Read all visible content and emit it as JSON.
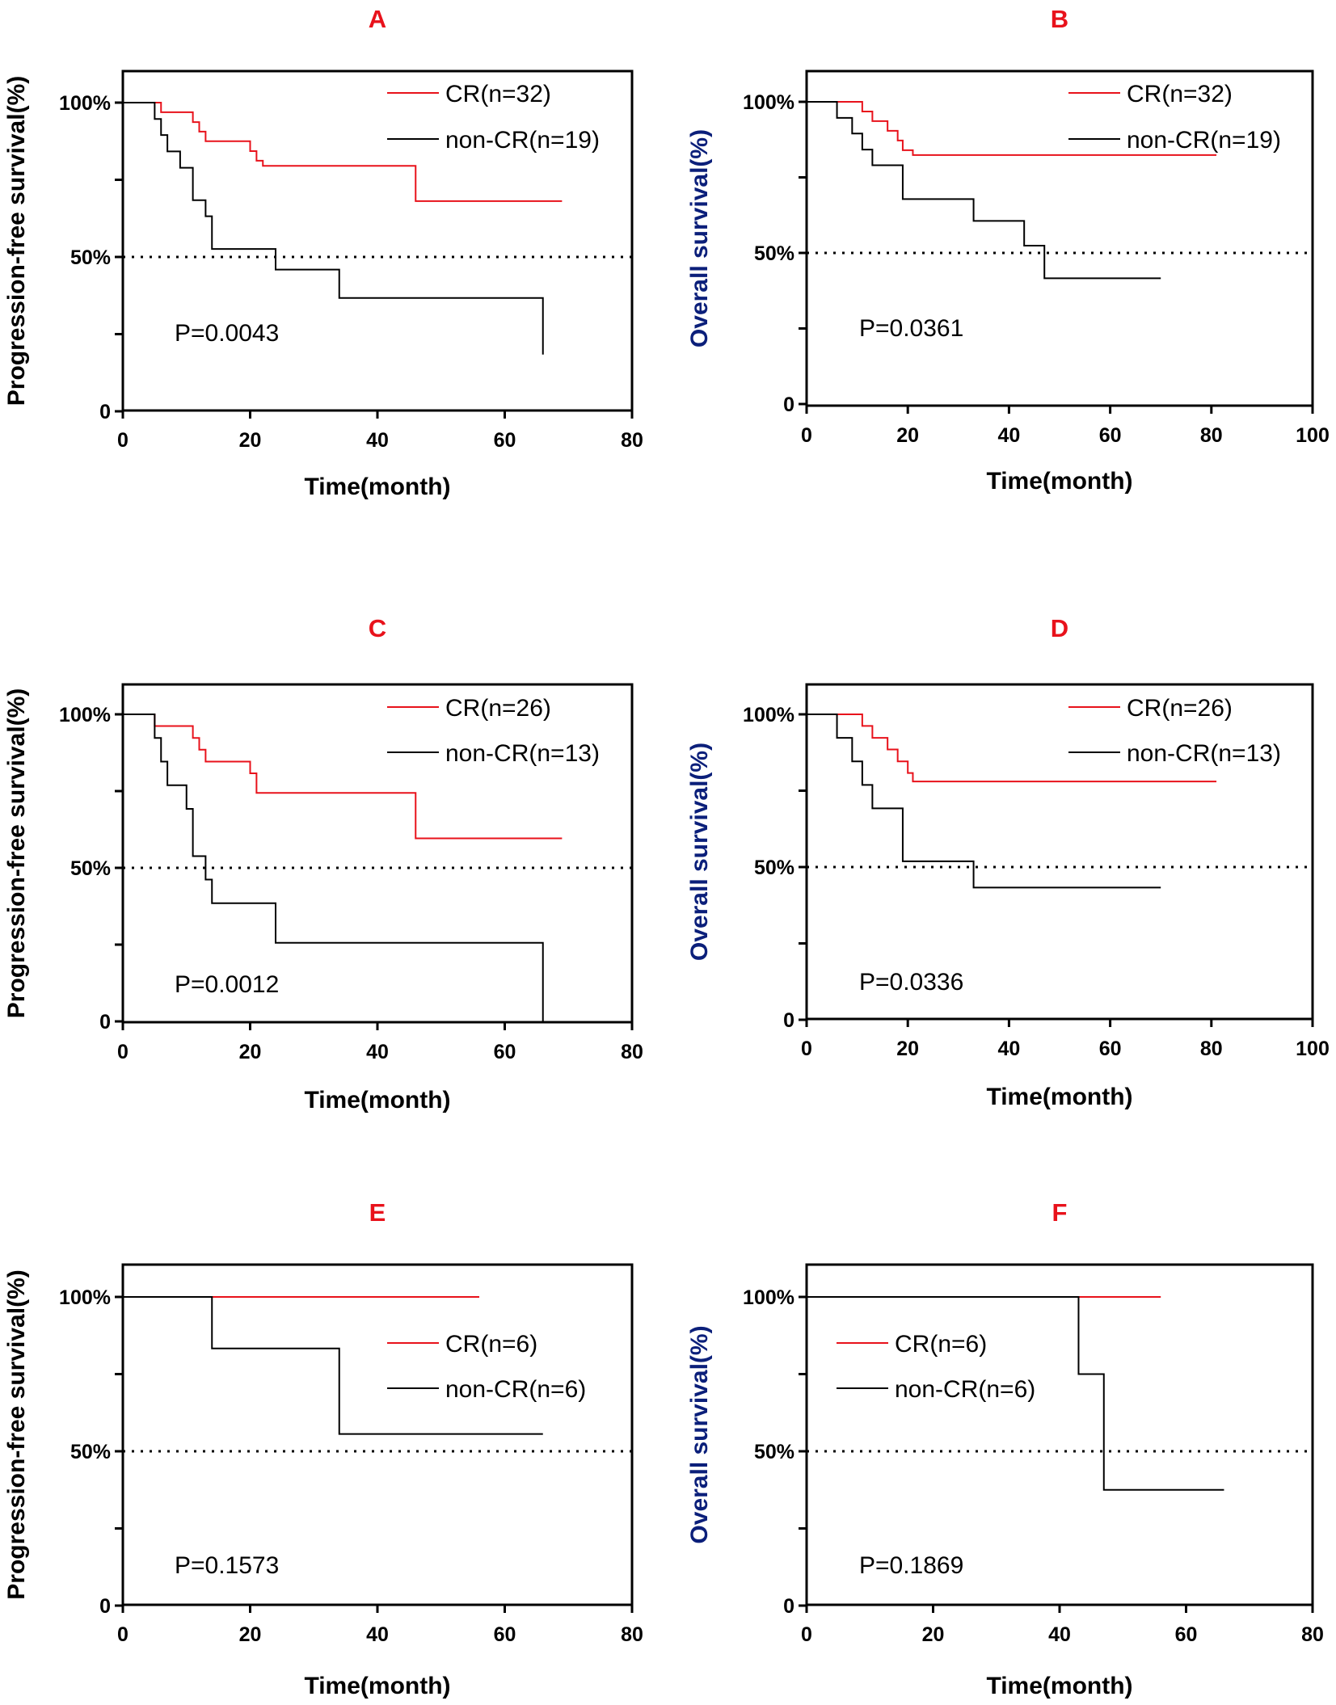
{
  "colors": {
    "cr": "#e8121b",
    "noncr": "#000000",
    "panel_letter": "#e8121b",
    "os_ylabel": "#0b1f7a",
    "axis": "#000000"
  },
  "chart_data": [
    {
      "type": "line",
      "panel": "A",
      "ylabel": "Progression-free survival(%)",
      "xlabel": "Time(month)",
      "xlim": [
        0,
        80
      ],
      "ylim": [
        0,
        110
      ],
      "xticks": [
        "0",
        "20",
        "40",
        "60",
        "80"
      ],
      "yticks": [
        {
          "value": 0,
          "label": "0"
        },
        {
          "value": 50,
          "label": "50%"
        },
        {
          "value": 100,
          "label": "100%"
        }
      ],
      "reference_line": 50,
      "p_value": "P=0.0043",
      "legend_position": "top-right",
      "series": [
        {
          "name": "CR(n=32)",
          "color": "#e8121b",
          "x": [
            0,
            6,
            11,
            12,
            13,
            20,
            21,
            22,
            46,
            69
          ],
          "y": [
            100,
            96.9,
            93.7,
            90.6,
            87.5,
            84.3,
            81.2,
            79.5,
            68.1,
            68.1
          ]
        },
        {
          "name": "non-CR(n=19)",
          "color": "#000000",
          "x": [
            0,
            5,
            6,
            7,
            9,
            11,
            13,
            14,
            24,
            34,
            66,
            66
          ],
          "y": [
            100,
            94.7,
            89.5,
            84.2,
            78.9,
            68.4,
            63.2,
            52.6,
            45.9,
            36.7,
            36.7,
            18.4
          ]
        }
      ]
    },
    {
      "type": "line",
      "panel": "B",
      "ylabel": "Overall survival(%)",
      "xlabel": "Time(month)",
      "xlim": [
        0,
        100
      ],
      "ylim": [
        0,
        110
      ],
      "xticks": [
        "0",
        "20",
        "40",
        "60",
        "80",
        "100"
      ],
      "yticks": [
        {
          "value": 0,
          "label": "0"
        },
        {
          "value": 50,
          "label": "50%"
        },
        {
          "value": 100,
          "label": "100%"
        }
      ],
      "reference_line": 50,
      "p_value": "P=0.0361",
      "legend_position": "top-right",
      "series": [
        {
          "name": "CR(n=32)",
          "color": "#e8121b",
          "x": [
            0,
            11,
            13,
            16,
            18,
            19,
            20,
            21,
            81
          ],
          "y": [
            100,
            96.8,
            93.6,
            90.4,
            87.2,
            84,
            84,
            82.4,
            82.4
          ]
        },
        {
          "name": "non-CR(n=19)",
          "color": "#000000",
          "x": [
            0,
            6,
            9,
            11,
            13,
            19,
            33,
            43,
            47,
            70
          ],
          "y": [
            100,
            94.7,
            89.5,
            84.2,
            79,
            67.8,
            60.6,
            52.4,
            41.6,
            41.6
          ]
        }
      ]
    },
    {
      "type": "line",
      "panel": "C",
      "ylabel": "Progression-free survival(%)",
      "xlabel": "Time(month)",
      "xlim": [
        0,
        80
      ],
      "ylim": [
        0,
        110
      ],
      "xticks": [
        "0",
        "20",
        "40",
        "60",
        "80"
      ],
      "yticks": [
        {
          "value": 0,
          "label": "0"
        },
        {
          "value": 50,
          "label": "50%"
        },
        {
          "value": 100,
          "label": "100%"
        }
      ],
      "reference_line": 50,
      "p_value": "P=0.0012",
      "legend_position": "top-right",
      "series": [
        {
          "name": "CR(n=26)",
          "color": "#e8121b",
          "x": [
            0,
            5,
            11,
            12,
            13,
            20,
            21,
            46,
            69
          ],
          "y": [
            100,
            96.2,
            92.3,
            88.5,
            84.6,
            80.8,
            74.4,
            59.6,
            59.6
          ]
        },
        {
          "name": "non-CR(n=13)",
          "color": "#000000",
          "x": [
            0,
            5,
            6,
            7,
            10,
            11,
            13,
            14,
            24,
            66,
            66
          ],
          "y": [
            100,
            92.3,
            84.6,
            76.9,
            69.2,
            53.8,
            46.2,
            38.5,
            25.6,
            25.6,
            0
          ]
        }
      ]
    },
    {
      "type": "line",
      "panel": "D",
      "ylabel": "Overall survival(%)",
      "xlabel": "Time(month)",
      "xlim": [
        0,
        100
      ],
      "ylim": [
        0,
        110
      ],
      "xticks": [
        "0",
        "20",
        "40",
        "60",
        "80",
        "100"
      ],
      "yticks": [
        {
          "value": 0,
          "label": "0"
        },
        {
          "value": 50,
          "label": "50%"
        },
        {
          "value": 100,
          "label": "100%"
        }
      ],
      "reference_line": 50,
      "p_value": "P=0.0336",
      "legend_position": "top-right",
      "series": [
        {
          "name": "CR(n=26)",
          "color": "#e8121b",
          "x": [
            0,
            11,
            13,
            16,
            18,
            20,
            21,
            81
          ],
          "y": [
            100,
            96.2,
            92.3,
            88.5,
            84.6,
            80.8,
            78,
            78
          ]
        },
        {
          "name": "non-CR(n=13)",
          "color": "#000000",
          "x": [
            0,
            6,
            9,
            11,
            13,
            19,
            33,
            70
          ],
          "y": [
            100,
            92.3,
            84.6,
            76.9,
            69.2,
            51.9,
            43.3,
            43.3
          ]
        }
      ]
    },
    {
      "type": "line",
      "panel": "E",
      "ylabel": "Progression-free survival(%)",
      "xlabel": "Time(month)",
      "xlim": [
        0,
        80
      ],
      "ylim": [
        0,
        110
      ],
      "xticks": [
        "0",
        "20",
        "40",
        "60",
        "80"
      ],
      "yticks": [
        {
          "value": 0,
          "label": "0"
        },
        {
          "value": 50,
          "label": "50%"
        },
        {
          "value": 100,
          "label": "100%"
        }
      ],
      "reference_line": 50,
      "p_value": "P=0.1573",
      "legend_position": "upper-right",
      "series": [
        {
          "name": "CR(n=6)",
          "color": "#e8121b",
          "x": [
            0,
            56
          ],
          "y": [
            100,
            100
          ]
        },
        {
          "name": "non-CR(n=6)",
          "color": "#000000",
          "x": [
            0,
            14,
            34,
            66
          ],
          "y": [
            100,
            83.3,
            55.6,
            55.6
          ]
        }
      ]
    },
    {
      "type": "line",
      "panel": "F",
      "ylabel": "Overall survival(%)",
      "xlabel": "Time(month)",
      "xlim": [
        0,
        80
      ],
      "ylim": [
        0,
        110
      ],
      "xticks": [
        "0",
        "20",
        "40",
        "60",
        "80"
      ],
      "yticks": [
        {
          "value": 0,
          "label": "0"
        },
        {
          "value": 50,
          "label": "50%"
        },
        {
          "value": 100,
          "label": "100%"
        }
      ],
      "reference_line": 50,
      "p_value": "P=0.1869",
      "legend_position": "upper-center",
      "series": [
        {
          "name": "CR(n=6)",
          "color": "#e8121b",
          "x": [
            0,
            56
          ],
          "y": [
            100,
            100
          ]
        },
        {
          "name": "non-CR(n=6)",
          "color": "#000000",
          "x": [
            0,
            43,
            47,
            66
          ],
          "y": [
            100,
            75,
            37.5,
            37.5
          ]
        }
      ]
    }
  ]
}
